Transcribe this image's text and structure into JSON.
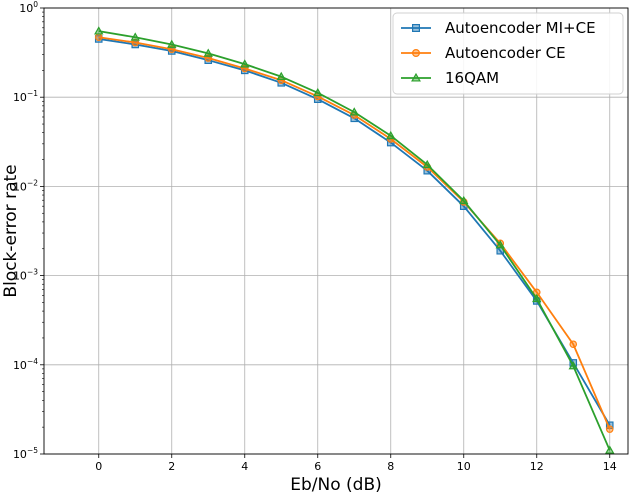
{
  "chart_data": {
    "type": "line",
    "xlabel": "Eb/No (dB)",
    "ylabel": "Block-error rate",
    "yscale": "log",
    "xlim": [
      -1.5,
      14.5
    ],
    "ylim": [
      1e-05,
      1
    ],
    "grid": true,
    "legend_position": "top-right",
    "x": [
      0,
      1,
      2,
      3,
      4,
      5,
      6,
      7,
      8,
      9,
      10,
      11,
      12,
      13,
      14
    ],
    "x_ticks": [
      0,
      2,
      4,
      6,
      8,
      10,
      12,
      14
    ],
    "y_ticks": [
      {
        "value": 1e-05,
        "base": "10",
        "exp": "−5"
      },
      {
        "value": 0.0001,
        "base": "10",
        "exp": "−4"
      },
      {
        "value": 0.001,
        "base": "10",
        "exp": "−3"
      },
      {
        "value": 0.01,
        "base": "10",
        "exp": "−2"
      },
      {
        "value": 0.1,
        "base": "10",
        "exp": "−1"
      },
      {
        "value": 1,
        "base": "10",
        "exp": "0"
      }
    ],
    "series": [
      {
        "name": "Autoencoder MI+CE",
        "color": "#1f77b4",
        "marker": "square",
        "values": [
          0.45,
          0.39,
          0.33,
          0.26,
          0.2,
          0.145,
          0.095,
          0.058,
          0.031,
          0.015,
          0.006,
          0.0019,
          0.00052,
          0.000105,
          2.1e-05
        ]
      },
      {
        "name": "Autoencoder CE",
        "color": "#ff7f0e",
        "marker": "circle",
        "values": [
          0.47,
          0.41,
          0.345,
          0.275,
          0.21,
          0.155,
          0.102,
          0.063,
          0.034,
          0.0165,
          0.0067,
          0.0023,
          0.00065,
          0.00017,
          1.9e-05
        ]
      },
      {
        "name": "16QAM",
        "color": "#2ca02c",
        "marker": "triangle",
        "values": [
          0.55,
          0.47,
          0.39,
          0.31,
          0.235,
          0.17,
          0.112,
          0.068,
          0.037,
          0.0175,
          0.0069,
          0.0022,
          0.00055,
          9.7e-05,
          1.1e-05
        ]
      }
    ]
  }
}
